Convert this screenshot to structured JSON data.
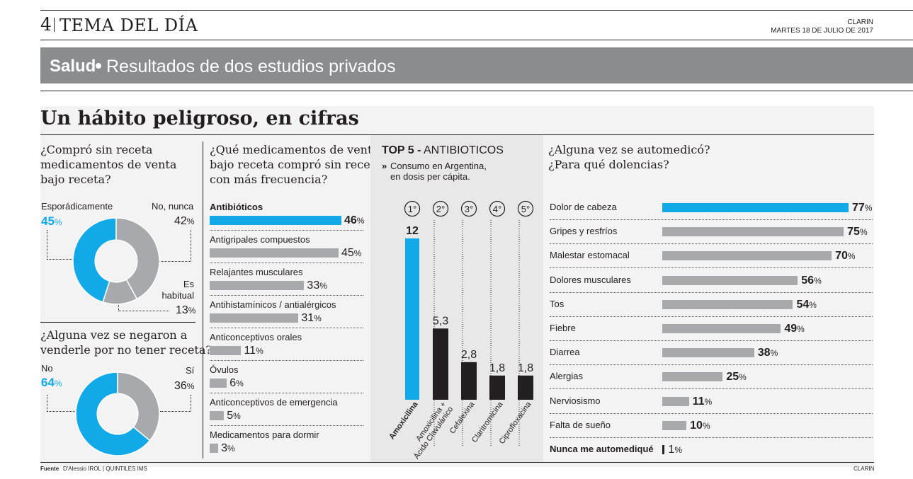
{
  "header": {
    "page_number": "4",
    "section": "TEMA DEL DÍA",
    "publication": "CLARIN",
    "date": "MARTES 18 DE JULIO DE 2017"
  },
  "banner": {
    "topic": "Salud",
    "text": "Resultados de dos estudios privados"
  },
  "title": "Un hábito peligroso, en cifras",
  "colors": {
    "accent": "#12a9e8",
    "bar_gray": "#a7a9ac",
    "dark": "#231f20",
    "banner": "#8b8c8e"
  },
  "chart_data": [
    {
      "type": "pie",
      "title": "¿Compró sin receta medicamentos de venta bajo receta?",
      "slices": [
        {
          "label": "Esporádicamente",
          "value": 45
        },
        {
          "label": "No, nunca",
          "value": 42
        },
        {
          "label": "Es habitual",
          "value": 13
        }
      ],
      "display": {
        "Esporádicamente": "45",
        "No, nunca": "42",
        "Es habitual": "13"
      }
    },
    {
      "type": "pie",
      "title": "¿Alguna vez se negaron a venderle por no tener receta?",
      "slices": [
        {
          "label": "No",
          "value": 64
        },
        {
          "label": "Sí",
          "value": 36
        }
      ]
    },
    {
      "type": "bar",
      "title": "¿Qué medicamentos de venta bajo receta compró sin receta con más frecuencia?",
      "categories": [
        "Antibióticos",
        "Antigripales compuestos",
        "Relajantes musculares",
        "Antihistamínicos / antialérgicos",
        "Anticonceptivos orales",
        "Óvulos",
        "Anticonceptivos de emergencia",
        "Medicamentos para dormir"
      ],
      "values": [
        46,
        45,
        33,
        31,
        11,
        6,
        5,
        3
      ],
      "unit": "%"
    },
    {
      "type": "bar",
      "title": "TOP 5 - ANTIBIOTICOS",
      "subtitle": "Consumo en Argentina, en dosis per cápita.",
      "subtitle_lines": [
        "Consumo en Argentina,",
        "en dosis per cápita."
      ],
      "subtitle_marker": "»",
      "title_bold": "TOP 5",
      "title_rest": "ANTIBIOTICOS",
      "ranks": [
        "1°",
        "2°",
        "3°",
        "4°",
        "5°"
      ],
      "categories": [
        "Amoxicilina",
        "Amoxicilina + Ácido Clavulánico",
        "Cefalexina",
        "Claritromicina",
        "Ciprofloxacina"
      ],
      "category_lines": [
        [
          "Amoxicilina"
        ],
        [
          "Amoxicilina +",
          "Ácido Clavulánico"
        ],
        [
          "Cefalexina"
        ],
        [
          "Claritromicina"
        ],
        [
          "Ciprofloxacina"
        ]
      ],
      "values": [
        12,
        5.3,
        2.8,
        1.8,
        1.8
      ],
      "value_labels": [
        "12",
        "5,3",
        "2,8",
        "1,8",
        "1,8"
      ]
    },
    {
      "type": "bar",
      "title": "¿Alguna vez se automedicó? ¿Para qué dolencias?",
      "categories": [
        "Dolor de cabeza",
        "Gripes y resfríos",
        "Malestar estomacal",
        "Dolores musculares",
        "Tos",
        "Fiebre",
        "Diarrea",
        "Alergias",
        "Nerviosismo",
        "Falta de sueño",
        "Nunca me automediqué"
      ],
      "values": [
        77,
        75,
        70,
        56,
        54,
        49,
        38,
        25,
        11,
        10,
        1
      ],
      "unit": "%"
    }
  ],
  "text": {
    "q1_lines": [
      "¿Compró sin receta",
      "medicamentos de venta",
      "bajo receta?"
    ],
    "q2_lines": [
      "¿Alguna vez se negaron a",
      "venderle por no tener receta?"
    ],
    "q3_lines": [
      "¿Qué medicamentos de venta",
      "bajo receta compró sin receta",
      "con más frecuencia?"
    ],
    "q4_lines": [
      "¿Alguna vez se automedicó?",
      "¿Para qué dolencias?"
    ],
    "es_habitual_lines": [
      "Es",
      "habitual"
    ],
    "percent_sign": "%",
    "top5_dash": "-"
  },
  "footer": {
    "label": "Fuente",
    "source": "D'Alessio IROL  |  QUINTILES IMS",
    "credit": "CLARIN"
  }
}
